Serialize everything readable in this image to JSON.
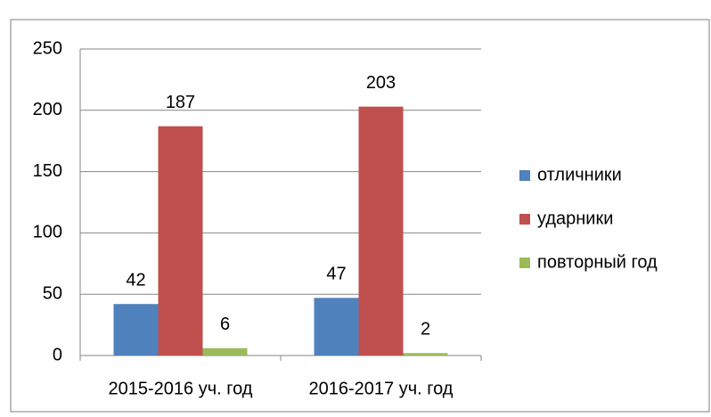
{
  "chart_data": {
    "type": "bar",
    "categories": [
      "2015-2016 уч. год",
      "2016-2017 уч. год"
    ],
    "series": [
      {
        "name": "отличники",
        "color": "#4f81bd",
        "values": [
          42,
          47
        ]
      },
      {
        "name": "ударники",
        "color": "#c0504d",
        "values": [
          187,
          203
        ]
      },
      {
        "name": "повторный год",
        "color": "#9bbb59",
        "values": [
          6,
          2
        ]
      }
    ],
    "ylim": [
      0,
      250
    ],
    "yticks": [
      0,
      50,
      100,
      150,
      200,
      250
    ],
    "grid": true,
    "legend": "right"
  }
}
